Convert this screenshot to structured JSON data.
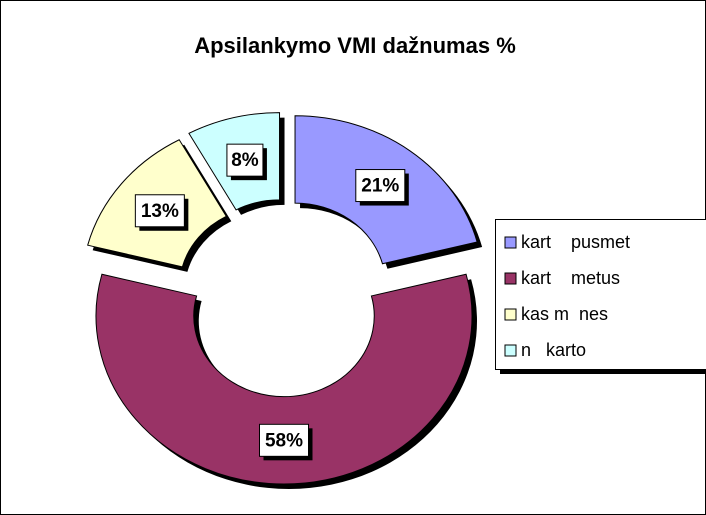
{
  "chart_data": {
    "type": "doughnut",
    "title": "Apsilankymo VMI dažnumas %",
    "categories": [
      "kart    pusmet",
      "kart    metus",
      "kas m  nes",
      "n   karto"
    ],
    "values": [
      21,
      58,
      13,
      8
    ],
    "value_labels": [
      "21%",
      "58%",
      "13%",
      "8%"
    ],
    "colors": [
      "#9999ff",
      "#993366",
      "#ffffcc",
      "#ccffff"
    ],
    "exploded": true,
    "legend": "right"
  }
}
